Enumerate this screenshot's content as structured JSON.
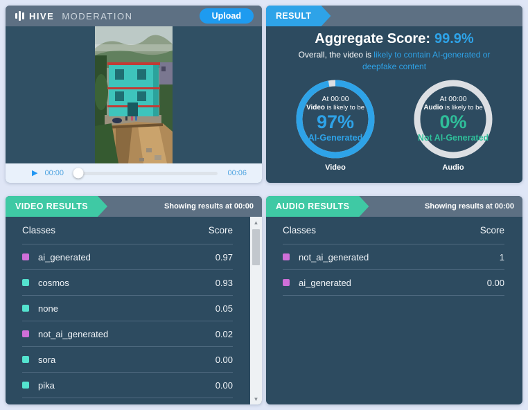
{
  "app": {
    "brand_bold": "HIVE",
    "brand_light": "MODERATION",
    "upload_label": "Upload"
  },
  "icons": {
    "play": "▶",
    "scroll_up": "▲",
    "scroll_down": "▼"
  },
  "player": {
    "current_time": "00:00",
    "duration": "00:06",
    "video_description": "teal multi-storey building at edge of landslide collapse"
  },
  "result": {
    "tab_label": "RESULT",
    "aggregate_label": "Aggregate Score:",
    "aggregate_value": "99.9%",
    "summary_prefix": "Overall, the video is ",
    "summary_highlight": "likely to contain AI-generated or deepfake content",
    "gauges": [
      {
        "at": "At 00:00",
        "subject": "Video",
        "likely": " is likely to be",
        "pct": "97%",
        "verdict": "AI-Generated",
        "label": "Video",
        "value": 97,
        "color": "#2ea3e8"
      },
      {
        "at": "At 00:00",
        "subject": "Audio",
        "likely": " is likely to be",
        "pct": "0%",
        "verdict": "Not AI-Generated",
        "label": "Audio",
        "value": 0,
        "color": "#2fbf9a"
      }
    ]
  },
  "video_results": {
    "tab_label": "VIDEO RESULTS",
    "showing_label": "Showing results at 00:00",
    "columns": {
      "classes": "Classes",
      "score": "Score"
    },
    "rows": [
      {
        "name": "ai_generated",
        "score": "0.97",
        "bullet": "#cf6fd8"
      },
      {
        "name": "cosmos",
        "score": "0.93",
        "bullet": "#54e3cf"
      },
      {
        "name": "none",
        "score": "0.05",
        "bullet": "#54e3cf"
      },
      {
        "name": "not_ai_generated",
        "score": "0.02",
        "bullet": "#cf6fd8"
      },
      {
        "name": "sora",
        "score": "0.00",
        "bullet": "#54e3cf"
      },
      {
        "name": "pika",
        "score": "0.00",
        "bullet": "#54e3cf"
      }
    ]
  },
  "audio_results": {
    "tab_label": "AUDIO RESULTS",
    "showing_label": "Showing results at 00:00",
    "columns": {
      "classes": "Classes",
      "score": "Score"
    },
    "rows": [
      {
        "name": "not_ai_generated",
        "score": "1",
        "bullet": "#cf6fd8"
      },
      {
        "name": "ai_generated",
        "score": "0.00",
        "bullet": "#cf6fd8"
      }
    ]
  },
  "colors": {
    "page_bg": "#dfe6f6",
    "panel_bg": "#2d4b60",
    "header_bar": "#5d7083",
    "accent_blue": "#2ea3e8",
    "accent_teal": "#3fc9a4",
    "teal_text": "#2fbf9a",
    "ring_gray": "#dcdfe3",
    "separator": "#4f6a80"
  }
}
